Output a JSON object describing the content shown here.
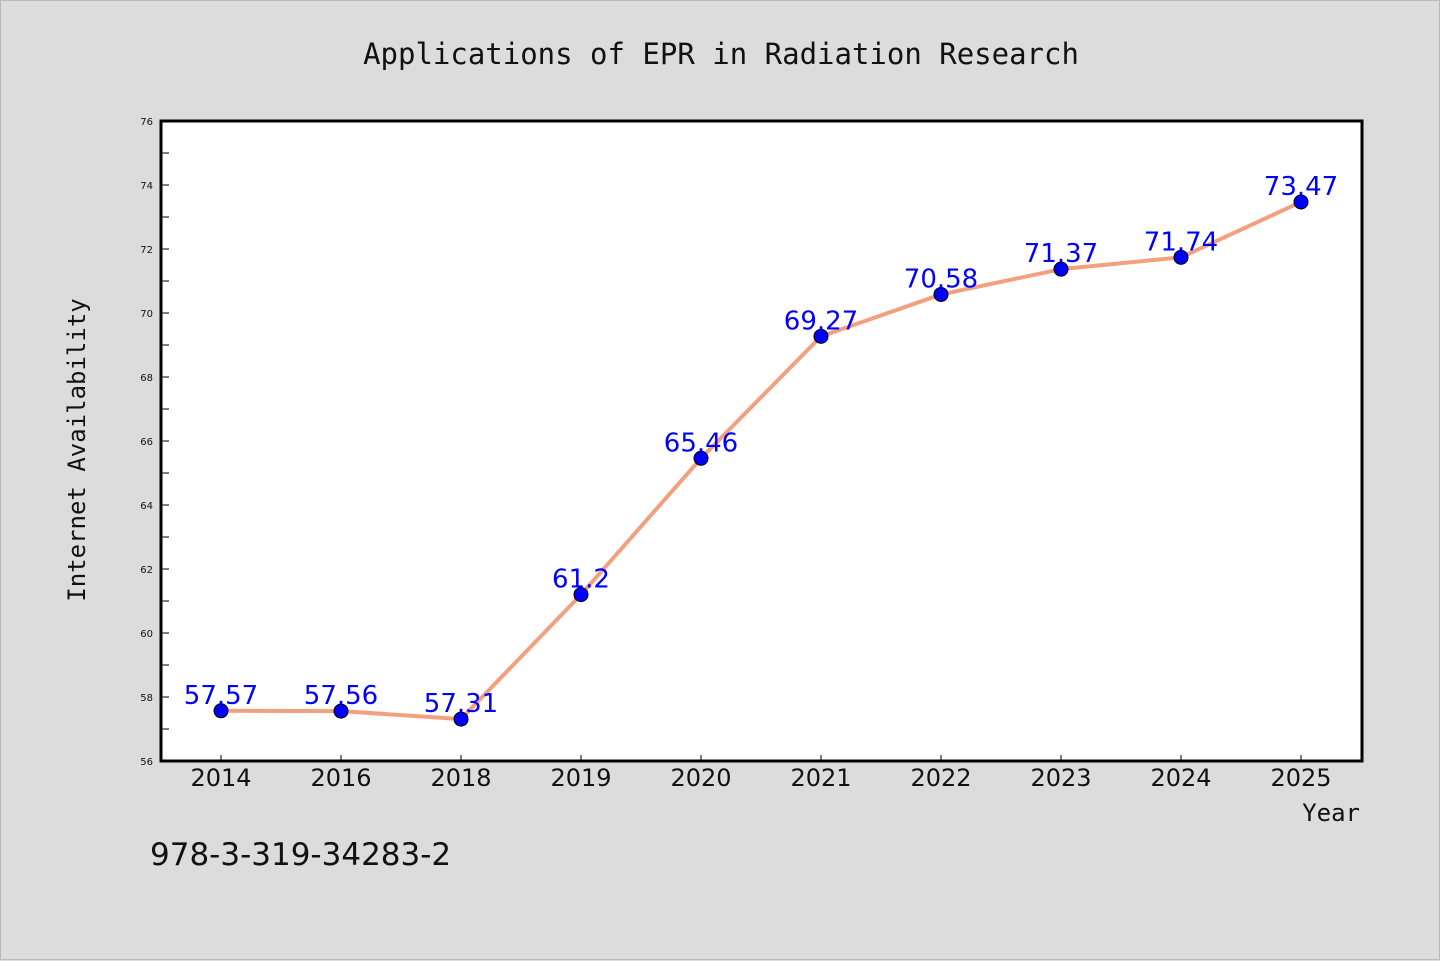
{
  "chart_data": {
    "type": "line",
    "title": "Applications of EPR in Radiation Research",
    "xlabel": "Year",
    "ylabel": "Internet Availability",
    "categories": [
      "2014",
      "2016",
      "2018",
      "2019",
      "2020",
      "2021",
      "2022",
      "2023",
      "2024",
      "2025"
    ],
    "series": [
      {
        "values": [
          57.57,
          57.56,
          57.31,
          61.2,
          65.46,
          69.27,
          70.58,
          71.37,
          71.74,
          73.47
        ],
        "data_labels": [
          "57.57",
          "57.56",
          "57.31",
          "61.2",
          "65.46",
          "69.27",
          "70.58",
          "71.37",
          "71.74",
          "73.47"
        ]
      }
    ],
    "ylim": [
      56,
      76
    ],
    "yticks": [
      "56",
      "58",
      "60",
      "62",
      "64",
      "66",
      "68",
      "70",
      "72",
      "74",
      "76"
    ],
    "grid": false,
    "legend": "none",
    "colors": {
      "line": "#f4a07e",
      "marker": "#0000ff",
      "data_label": "#0000ff",
      "plot_bg": "#ffffff",
      "figure_bg": "#dcdcdc"
    }
  },
  "footer_text": "978-3-319-34283-2"
}
